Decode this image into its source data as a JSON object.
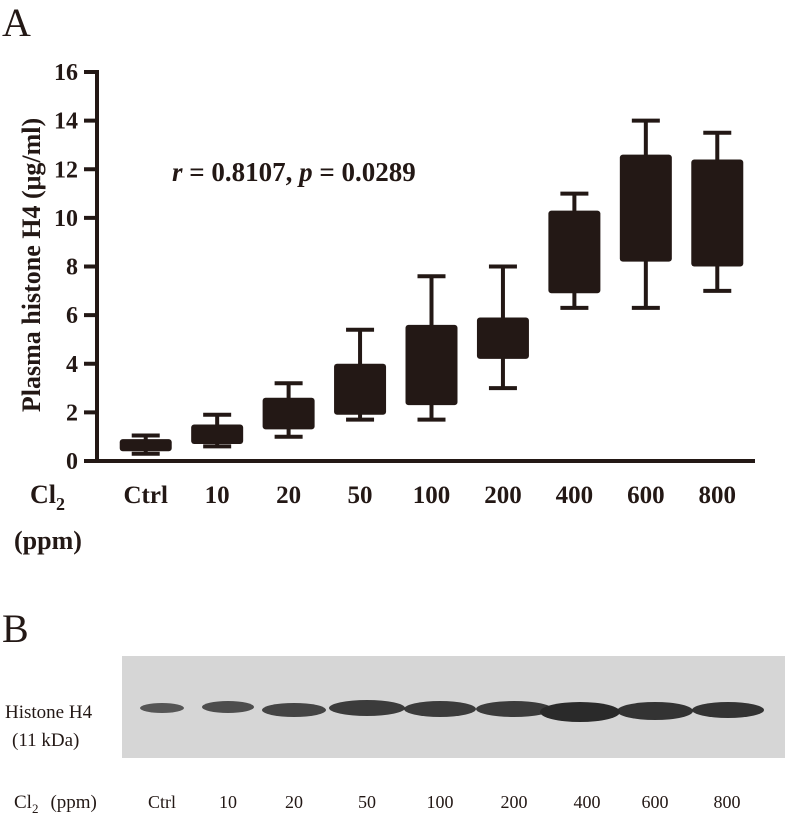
{
  "panel_a": {
    "label": "A"
  },
  "chart_data": {
    "type": "box",
    "y_label": "Plasma histone H4 (μg/ml)",
    "x_label": {
      "main": "Cl",
      "sub": "2",
      "unit": "(ppm)"
    },
    "annotation": {
      "r_label": "r",
      "r_text": "= 0.8107,",
      "p_label": "p",
      "p_text": "= 0.0289"
    },
    "categories": [
      "Ctrl",
      "10",
      "20",
      "50",
      "100",
      "200",
      "400",
      "600",
      "800"
    ],
    "whisker_low": [
      0.3,
      0.6,
      1.0,
      1.7,
      1.7,
      3.0,
      6.3,
      6.3,
      7.0
    ],
    "q1": [
      0.4,
      0.7,
      1.3,
      1.9,
      2.3,
      4.2,
      6.9,
      8.2,
      8.0
    ],
    "q3": [
      0.9,
      1.5,
      2.6,
      4.0,
      5.6,
      5.9,
      10.3,
      12.6,
      12.4
    ],
    "whisker_high": [
      1.05,
      1.9,
      3.2,
      5.4,
      7.6,
      8.0,
      11.0,
      14.0,
      13.5
    ],
    "color": "#231815",
    "ylim": [
      0,
      16
    ],
    "yticks": [
      0,
      2,
      4,
      6,
      8,
      10,
      12,
      14,
      16
    ]
  },
  "panel_b": {
    "label": "B",
    "band_label": "Histone H4",
    "weight": "(11 kDa)",
    "x_label": {
      "main": "Cl",
      "sub": "2",
      "unit": "(ppm)"
    },
    "lanes": [
      "Ctrl",
      "10",
      "20",
      "50",
      "100",
      "200",
      "400",
      "600",
      "800"
    ]
  }
}
